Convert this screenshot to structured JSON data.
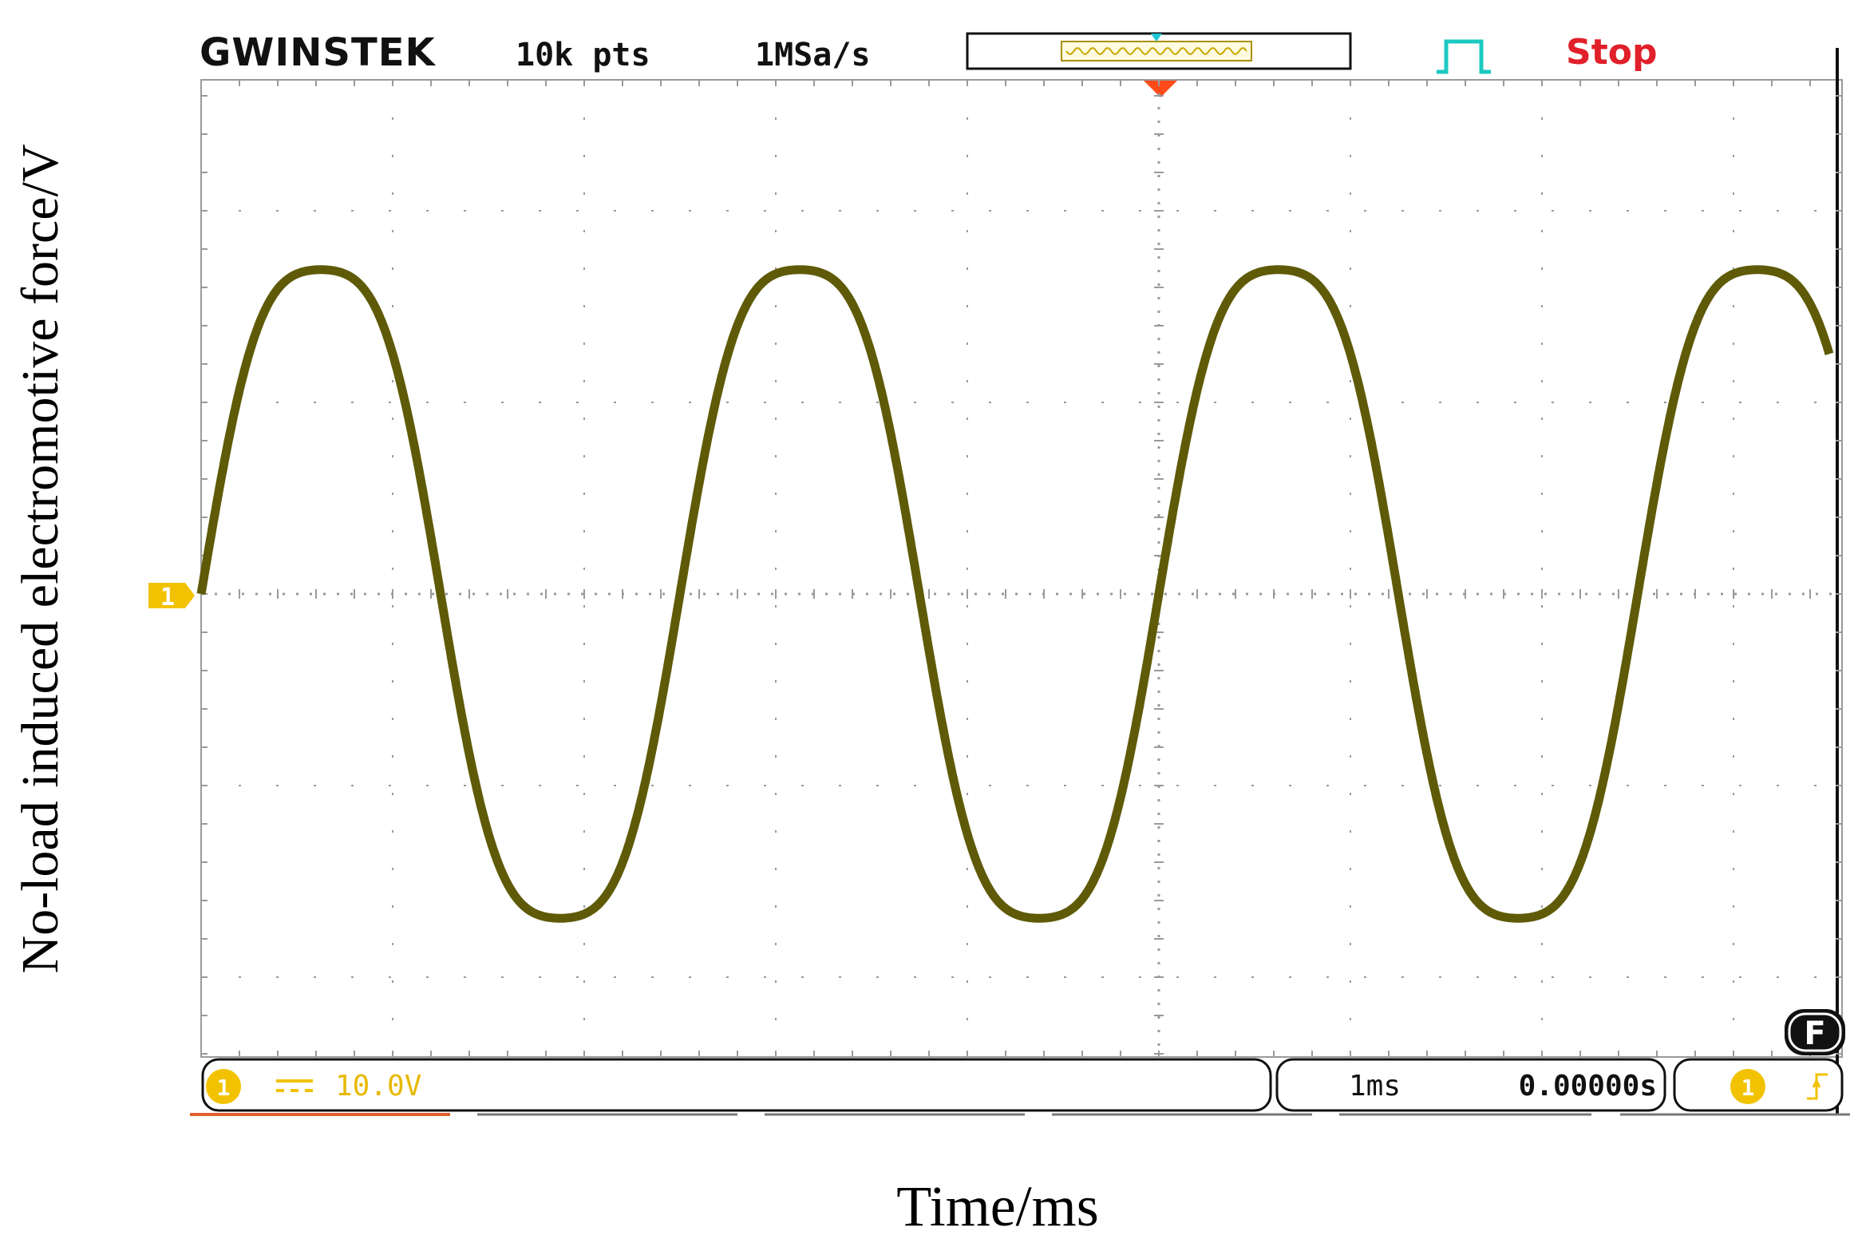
{
  "header": {
    "brand": "GWINSTEK",
    "record_length": "10k pts",
    "sample_rate": "1MSa/s",
    "run_state": "Stop"
  },
  "channel": {
    "marker": "1",
    "coupling": "DC",
    "scale": "10.0V",
    "color": "#f2c200",
    "trace_color": "#5e5a07"
  },
  "timebase": {
    "scale": "1ms",
    "position": "0.00000s"
  },
  "trigger": {
    "source": "1",
    "slope": "rising",
    "mode_badge": "F",
    "marker_color": "#ff4a1a"
  },
  "chart_data": {
    "type": "line",
    "title": "",
    "xlabel": "Time/ms",
    "ylabel": "No-load induced electromotive force/V",
    "grid": true,
    "divisions": {
      "x": 8.5,
      "y": 7.7,
      "y_above_zero": 4,
      "y_below_zero": 3.7
    },
    "xlim_ms": [
      0,
      8.5
    ],
    "ylim_v": [
      -37,
      40
    ],
    "series": [
      {
        "period_ms": 2.5,
        "amplitude_v": 18.6,
        "peaks_ms": [
          0.6,
          3.1,
          5.6,
          8.1
        ],
        "troughs_ms": [
          1.85,
          4.35,
          6.85
        ],
        "zero_crossings_rising_ms": [
          0,
          2.5,
          5.0,
          7.5
        ]
      }
    ]
  }
}
